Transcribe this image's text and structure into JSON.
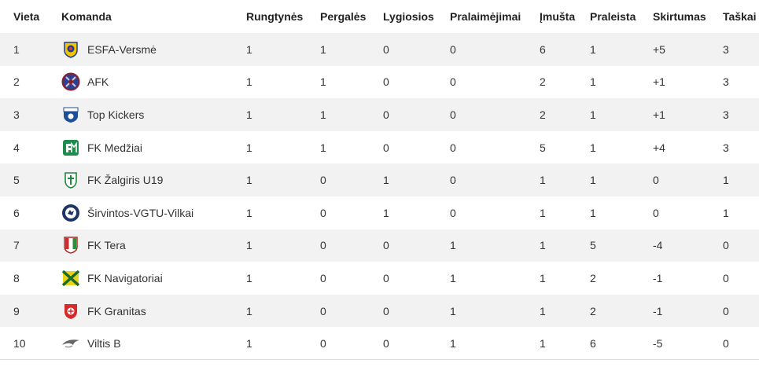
{
  "table": {
    "headers": [
      "Vieta",
      "Komanda",
      "Rungtynės",
      "Pergalės",
      "Lygiosios",
      "Pralaimėjimai",
      "Įmušta",
      "Praleista",
      "Skirtumas",
      "Taškai"
    ],
    "rows": [
      {
        "place": "1",
        "team": "ESFA-Versmė",
        "logo": "esfa-versme-logo",
        "played": "1",
        "won": "1",
        "drawn": "0",
        "lost": "0",
        "scored": "6",
        "conceded": "1",
        "diff": "+5",
        "points": "3"
      },
      {
        "place": "2",
        "team": "AFK",
        "logo": "afk-logo",
        "played": "1",
        "won": "1",
        "drawn": "0",
        "lost": "0",
        "scored": "2",
        "conceded": "1",
        "diff": "+1",
        "points": "3"
      },
      {
        "place": "3",
        "team": "Top Kickers",
        "logo": "top-kickers-logo",
        "played": "1",
        "won": "1",
        "drawn": "0",
        "lost": "0",
        "scored": "2",
        "conceded": "1",
        "diff": "+1",
        "points": "3"
      },
      {
        "place": "4",
        "team": "FK Medžiai",
        "logo": "fk-medziai-logo",
        "played": "1",
        "won": "1",
        "drawn": "0",
        "lost": "0",
        "scored": "5",
        "conceded": "1",
        "diff": "+4",
        "points": "3"
      },
      {
        "place": "5",
        "team": "FK Žalgiris U19",
        "logo": "fk-zalgiris-logo",
        "played": "1",
        "won": "0",
        "drawn": "1",
        "lost": "0",
        "scored": "1",
        "conceded": "1",
        "diff": "0",
        "points": "1"
      },
      {
        "place": "6",
        "team": "Širvintos-VGTU-Vilkai",
        "logo": "sirvintos-vgtu-vilkai-logo",
        "played": "1",
        "won": "0",
        "drawn": "1",
        "lost": "0",
        "scored": "1",
        "conceded": "1",
        "diff": "0",
        "points": "1"
      },
      {
        "place": "7",
        "team": "FK Tera",
        "logo": "fk-tera-logo",
        "played": "1",
        "won": "0",
        "drawn": "0",
        "lost": "1",
        "scored": "1",
        "conceded": "5",
        "diff": "-4",
        "points": "0"
      },
      {
        "place": "8",
        "team": "FK Navigatoriai",
        "logo": "fk-navigatoriai-logo",
        "played": "1",
        "won": "0",
        "drawn": "0",
        "lost": "1",
        "scored": "1",
        "conceded": "2",
        "diff": "-1",
        "points": "0"
      },
      {
        "place": "9",
        "team": "FK Granitas",
        "logo": "fk-granitas-logo",
        "played": "1",
        "won": "0",
        "drawn": "0",
        "lost": "1",
        "scored": "1",
        "conceded": "2",
        "diff": "-1",
        "points": "0"
      },
      {
        "place": "10",
        "team": "Viltis B",
        "logo": "viltis-b-logo",
        "played": "1",
        "won": "0",
        "drawn": "0",
        "lost": "1",
        "scored": "1",
        "conceded": "6",
        "diff": "-5",
        "points": "0"
      }
    ]
  },
  "colors": {
    "stripe": "#f2f2f2",
    "text": "#333333",
    "header_text": "#222222"
  }
}
